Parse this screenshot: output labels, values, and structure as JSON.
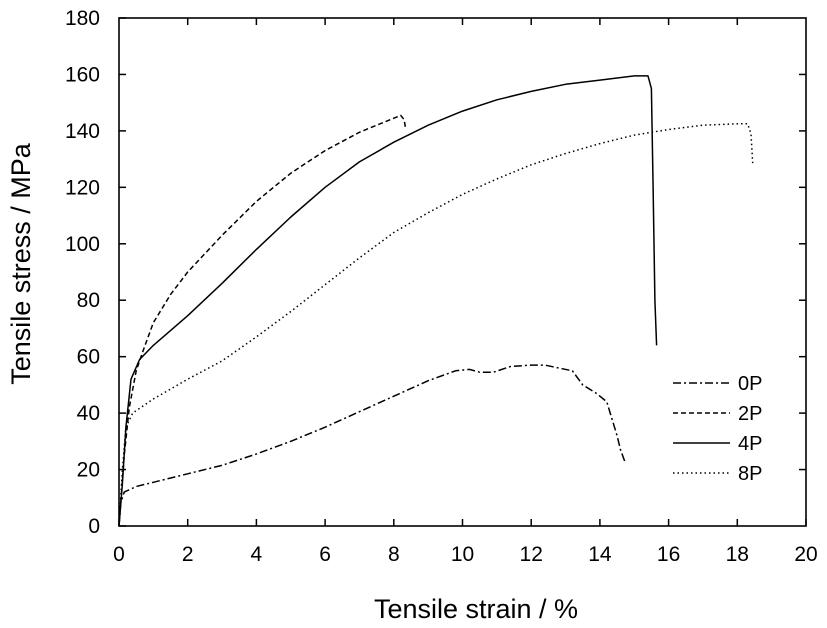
{
  "chart_data": {
    "type": "line",
    "xlabel": "Tensile strain / %",
    "ylabel": "Tensile stress / MPa",
    "xlim": [
      0,
      20
    ],
    "ylim": [
      0,
      180
    ],
    "xticks": [
      0,
      2,
      4,
      6,
      8,
      10,
      12,
      14,
      16,
      18,
      20
    ],
    "yticks": [
      0,
      20,
      40,
      60,
      80,
      100,
      120,
      140,
      160,
      180
    ],
    "grid": false,
    "legend_position": "bottom-right",
    "series": [
      {
        "name": "0P",
        "dash": "dash-dot",
        "points": [
          [
            0,
            0
          ],
          [
            0.05,
            8
          ],
          [
            0.15,
            12
          ],
          [
            0.5,
            14
          ],
          [
            1,
            15.5
          ],
          [
            2,
            18.5
          ],
          [
            3,
            21.5
          ],
          [
            4,
            25.5
          ],
          [
            5,
            30
          ],
          [
            6,
            35
          ],
          [
            7,
            40.5
          ],
          [
            8,
            46
          ],
          [
            9,
            51.5
          ],
          [
            9.8,
            55
          ],
          [
            10.2,
            55.5
          ],
          [
            10.5,
            54.5
          ],
          [
            10.9,
            54.5
          ],
          [
            11.4,
            56.5
          ],
          [
            12,
            57
          ],
          [
            12.4,
            57
          ],
          [
            12.8,
            56
          ],
          [
            13.2,
            55
          ],
          [
            13.5,
            50
          ],
          [
            13.9,
            47
          ],
          [
            14.2,
            44
          ],
          [
            14.3,
            40
          ],
          [
            14.5,
            32
          ],
          [
            14.6,
            27
          ],
          [
            14.75,
            22
          ]
        ]
      },
      {
        "name": "2P",
        "dash": "dashed",
        "points": [
          [
            0,
            0
          ],
          [
            0.15,
            25
          ],
          [
            0.3,
            42
          ],
          [
            0.5,
            55
          ],
          [
            0.7,
            62
          ],
          [
            1,
            72
          ],
          [
            1.5,
            82
          ],
          [
            2,
            90
          ],
          [
            3,
            103
          ],
          [
            4,
            115
          ],
          [
            5,
            125
          ],
          [
            6,
            133
          ],
          [
            7,
            139.5
          ],
          [
            7.5,
            142
          ],
          [
            8,
            144.5
          ],
          [
            8.2,
            145.5
          ],
          [
            8.3,
            144
          ],
          [
            8.35,
            140.5
          ]
        ]
      },
      {
        "name": "4P",
        "dash": "solid",
        "points": [
          [
            0,
            0
          ],
          [
            0.1,
            15
          ],
          [
            0.2,
            35
          ],
          [
            0.35,
            52
          ],
          [
            0.6,
            59
          ],
          [
            1,
            64
          ],
          [
            2,
            74.5
          ],
          [
            3,
            86
          ],
          [
            4,
            98
          ],
          [
            5,
            109.5
          ],
          [
            6,
            120
          ],
          [
            7,
            129
          ],
          [
            8,
            136
          ],
          [
            9,
            142
          ],
          [
            10,
            147
          ],
          [
            11,
            151
          ],
          [
            12,
            154
          ],
          [
            13,
            156.5
          ],
          [
            14,
            158
          ],
          [
            15,
            159.5
          ],
          [
            15.4,
            159.5
          ],
          [
            15.5,
            155
          ],
          [
            15.55,
            120
          ],
          [
            15.6,
            80
          ],
          [
            15.65,
            64
          ]
        ]
      },
      {
        "name": "8P",
        "dash": "dotted",
        "points": [
          [
            0,
            0
          ],
          [
            0.1,
            20
          ],
          [
            0.2,
            35
          ],
          [
            0.4,
            40
          ],
          [
            1,
            45
          ],
          [
            2,
            52
          ],
          [
            3,
            58.5
          ],
          [
            4,
            67
          ],
          [
            5,
            76
          ],
          [
            6,
            85.5
          ],
          [
            7,
            95
          ],
          [
            8,
            104
          ],
          [
            9,
            111
          ],
          [
            10,
            117.5
          ],
          [
            11,
            123
          ],
          [
            12,
            128
          ],
          [
            13,
            132
          ],
          [
            14,
            135.5
          ],
          [
            15,
            138.5
          ],
          [
            16,
            140.5
          ],
          [
            17,
            142
          ],
          [
            18,
            142.5
          ],
          [
            18.3,
            142.5
          ],
          [
            18.4,
            139
          ],
          [
            18.45,
            128
          ]
        ]
      }
    ]
  }
}
